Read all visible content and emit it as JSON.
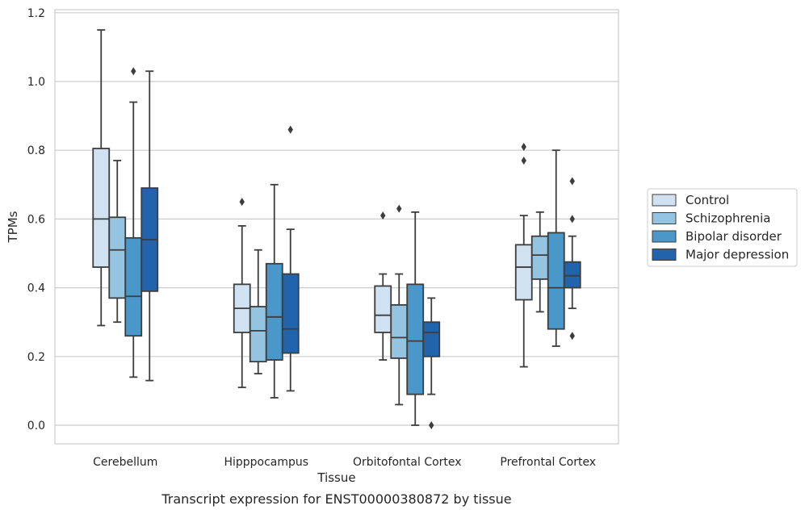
{
  "chart_data": {
    "type": "boxplot",
    "xlabel": "Tissue",
    "ylabel": "TPMs",
    "caption": "Transcript expression for ENST00000380872 by tissue",
    "ylim": [
      -0.055,
      1.21
    ],
    "yticks": [
      0.0,
      0.2,
      0.4,
      0.6,
      0.8,
      1.0,
      1.2
    ],
    "ytick_labels": [
      "0.0",
      "0.2",
      "0.4",
      "0.6",
      "0.8",
      "1.0",
      "1.2"
    ],
    "grid": "horizontal",
    "legend_position": "right",
    "categories": [
      "Cerebellum",
      "Hipppocampus",
      "Orbitofontal Cortex",
      "Prefrontal Cortex"
    ],
    "series": [
      {
        "name": "Control",
        "color": "#d0e1f2",
        "boxes": [
          {
            "whislo": 0.29,
            "q1": 0.46,
            "med": 0.6,
            "q3": 0.805,
            "whishi": 1.15,
            "fliers": []
          },
          {
            "whislo": 0.11,
            "q1": 0.27,
            "med": 0.34,
            "q3": 0.41,
            "whishi": 0.58,
            "fliers": [
              0.65
            ]
          },
          {
            "whislo": 0.19,
            "q1": 0.27,
            "med": 0.32,
            "q3": 0.405,
            "whishi": 0.44,
            "fliers": [
              0.61
            ]
          },
          {
            "whislo": 0.17,
            "q1": 0.365,
            "med": 0.46,
            "q3": 0.525,
            "whishi": 0.61,
            "fliers": [
              0.77,
              0.81
            ]
          }
        ]
      },
      {
        "name": "Schizophrenia",
        "color": "#94c4df",
        "boxes": [
          {
            "whislo": 0.3,
            "q1": 0.37,
            "med": 0.51,
            "q3": 0.605,
            "whishi": 0.77,
            "fliers": []
          },
          {
            "whislo": 0.15,
            "q1": 0.185,
            "med": 0.275,
            "q3": 0.345,
            "whishi": 0.51,
            "fliers": []
          },
          {
            "whislo": 0.06,
            "q1": 0.195,
            "med": 0.255,
            "q3": 0.35,
            "whishi": 0.44,
            "fliers": [
              0.63
            ]
          },
          {
            "whislo": 0.33,
            "q1": 0.425,
            "med": 0.495,
            "q3": 0.55,
            "whishi": 0.62,
            "fliers": []
          }
        ]
      },
      {
        "name": "Bipolar disorder",
        "color": "#4a98c9",
        "boxes": [
          {
            "whislo": 0.14,
            "q1": 0.26,
            "med": 0.375,
            "q3": 0.545,
            "whishi": 0.94,
            "fliers": [
              1.03
            ]
          },
          {
            "whislo": 0.08,
            "q1": 0.19,
            "med": 0.315,
            "q3": 0.47,
            "whishi": 0.7,
            "fliers": []
          },
          {
            "whislo": 0.0,
            "q1": 0.09,
            "med": 0.245,
            "q3": 0.41,
            "whishi": 0.62,
            "fliers": []
          },
          {
            "whislo": 0.23,
            "q1": 0.28,
            "med": 0.4,
            "q3": 0.56,
            "whishi": 0.8,
            "fliers": []
          }
        ]
      },
      {
        "name": "Major depression",
        "color": "#2164ab",
        "boxes": [
          {
            "whislo": 0.13,
            "q1": 0.39,
            "med": 0.54,
            "q3": 0.69,
            "whishi": 1.03,
            "fliers": []
          },
          {
            "whislo": 0.1,
            "q1": 0.21,
            "med": 0.28,
            "q3": 0.44,
            "whishi": 0.57,
            "fliers": [
              0.86
            ]
          },
          {
            "whislo": 0.09,
            "q1": 0.2,
            "med": 0.27,
            "q3": 0.3,
            "whishi": 0.37,
            "fliers": [
              0.0
            ]
          },
          {
            "whislo": 0.34,
            "q1": 0.4,
            "med": 0.435,
            "q3": 0.475,
            "whishi": 0.55,
            "fliers": [
              0.26,
              0.6,
              0.71
            ]
          }
        ]
      }
    ]
  }
}
